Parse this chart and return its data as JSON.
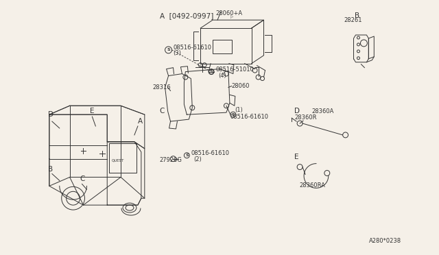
{
  "bg_color": "#f5f0e8",
  "lc": "#333333",
  "fs_label": 7.0,
  "fs_part": 6.0,
  "fs_section": 7.5,
  "section_A": "A  [0492-0997]",
  "section_B": "B",
  "section_C": "C",
  "section_D": "D",
  "section_E": "E",
  "p28060A": "28060+A",
  "p08516_61610": "08516-61610",
  "p28261": "28261",
  "p28316": "28316",
  "p28060": "28060",
  "p08516_51010": "08516-51010",
  "p27920G": "27920G",
  "p28360A": "28360A",
  "p28360R": "28360R",
  "p28360RA": "28360RA",
  "footer": "A280*0238"
}
